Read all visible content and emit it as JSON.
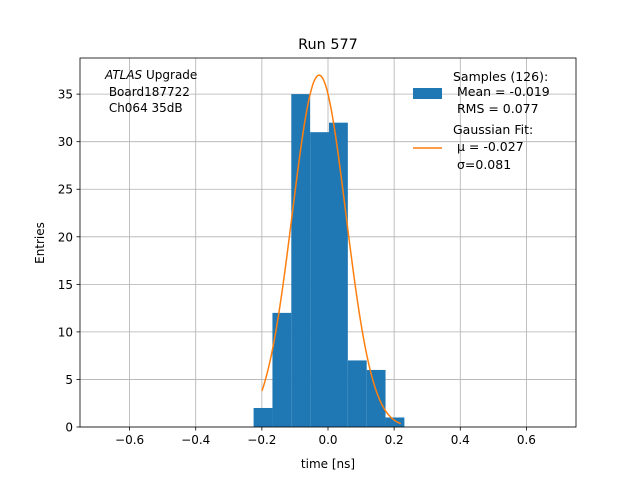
{
  "chart_data": {
    "type": "bar",
    "title": "Run 577",
    "xlabel": "time [ns]",
    "ylabel": "Entries",
    "xlim": [
      -0.75,
      0.75
    ],
    "ylim": [
      0,
      38.8
    ],
    "xticks": [
      -0.6,
      -0.4,
      -0.2,
      0.0,
      0.2,
      0.4,
      0.6
    ],
    "xtick_labels": [
      "−0.6",
      "−0.4",
      "−0.2",
      "0.0",
      "0.2",
      "0.4",
      "0.6"
    ],
    "yticks": [
      0,
      5,
      10,
      15,
      20,
      25,
      30,
      35
    ],
    "yticks_labels": [
      "0",
      "5",
      "10",
      "15",
      "20",
      "25",
      "30",
      "35"
    ],
    "grid": true,
    "histogram": {
      "name": "Samples (126):",
      "color": "#1f77b4",
      "bin_edges": [
        -0.225,
        -0.168,
        -0.111,
        -0.054,
        0.003,
        0.06,
        0.117,
        0.174,
        0.231
      ],
      "counts": [
        2,
        12,
        35,
        31,
        32,
        7,
        6,
        1
      ]
    },
    "fit": {
      "name": "Gaussian Fit:",
      "color": "#ff7f0e",
      "amplitude": 37.0,
      "mu": -0.027,
      "sigma": 0.081,
      "x_range": [
        -0.2,
        0.22
      ]
    },
    "legend": {
      "position": "top-right",
      "samples_title": "Samples (126):",
      "samples_mean": " Mean = -0.019",
      "samples_rms": " RMS = 0.077",
      "fit_title": "Gaussian Fit:",
      "fit_mu": " μ = -0.027",
      "fit_sigma": " σ=0.081"
    },
    "annotation": {
      "position": "top-left",
      "experiment": "ATLAS",
      "experiment_suffix": " Upgrade",
      "board": " Board187722",
      "channel": " Ch064 35dB"
    }
  }
}
